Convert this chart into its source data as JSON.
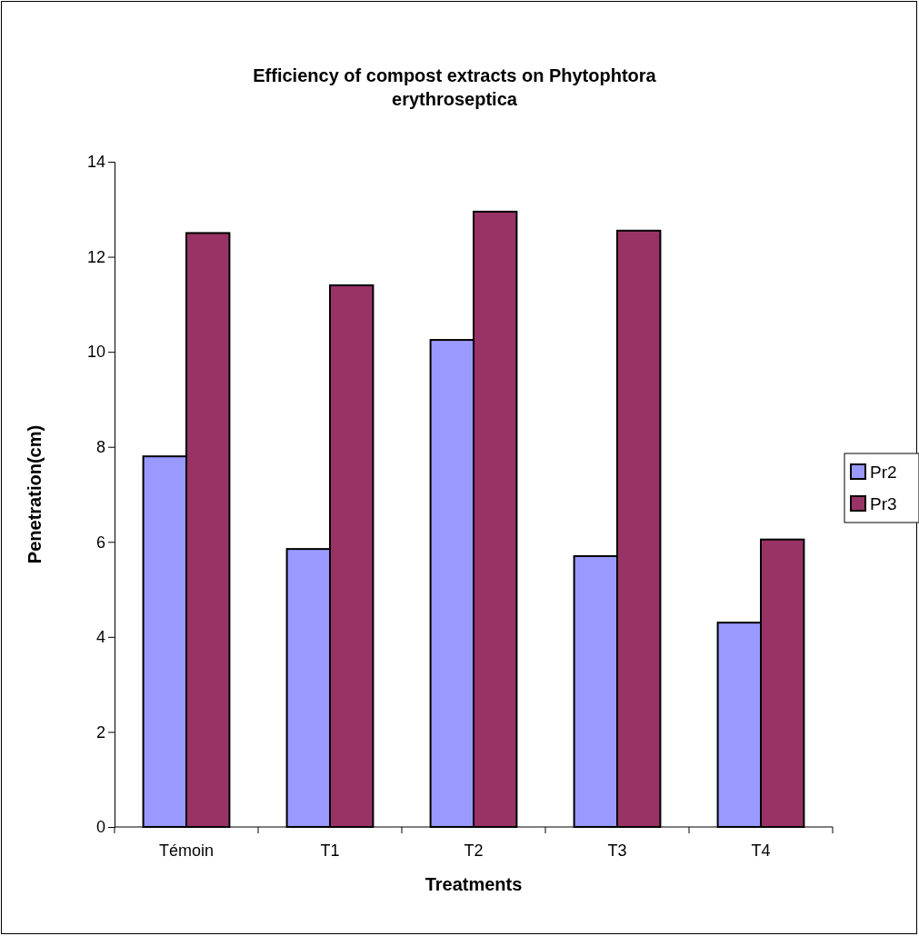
{
  "chart_data": {
    "type": "bar",
    "title": "Efficiency of compost extracts on Phytophtora erythroseptica",
    "xlabel": "Treatments",
    "ylabel": "Penetration(cm)",
    "categories": [
      "Témoin",
      "T1",
      "T2",
      "T3",
      "T4"
    ],
    "series": [
      {
        "name": "Pr2",
        "color": "#9999ff",
        "values": [
          7.8,
          5.85,
          10.25,
          5.7,
          4.3
        ]
      },
      {
        "name": "Pr3",
        "color": "#993366",
        "values": [
          12.5,
          11.4,
          12.95,
          12.55,
          6.05
        ]
      }
    ],
    "ylim": [
      0,
      14
    ],
    "yticks": [
      0,
      2,
      4,
      6,
      8,
      10,
      12,
      14
    ],
    "grid": false,
    "legend": "right"
  }
}
